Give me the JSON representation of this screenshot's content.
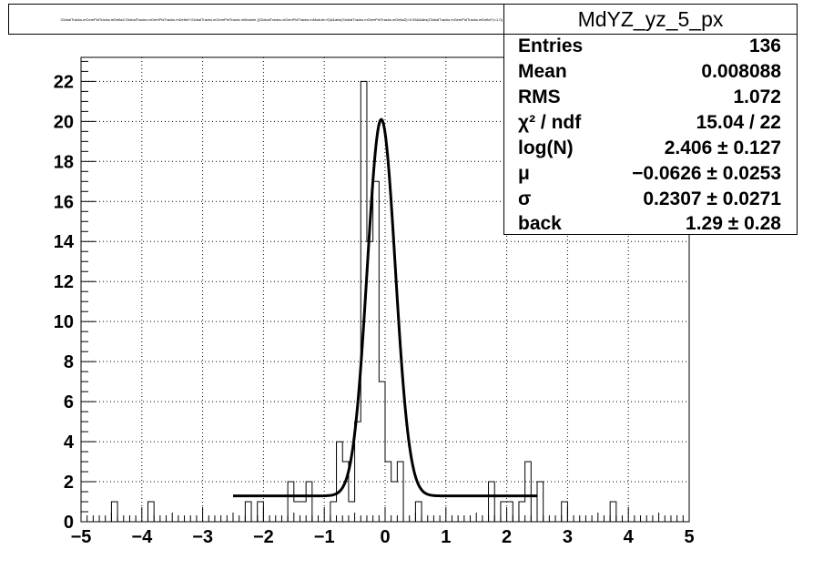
{
  "chart_data": {
    "type": "bar",
    "title": "GlobalTracks.mGemPidTracks.mDeltaZ:GlobalTracks.mGemPidTracks.mDeltaY:GlobalTracks.mGemPidTracks.mModule {(GlobalTracks.mGemPidTracks.mModule>0)&&abs(GlobalTracks.mGemPidTracks.mDeltaZ)<0.05&&abs(GlobalTracks.mGemPidTracks.mDeltaY)<1.0} yz projection",
    "histogram": {
      "bin_edges_start": -5,
      "bin_width": 0.1,
      "counts": [
        0,
        0,
        0,
        0,
        0,
        1,
        0,
        0,
        0,
        0,
        0,
        1,
        0,
        0,
        0,
        0,
        0,
        0,
        0,
        0,
        0,
        0,
        0,
        0,
        0,
        0,
        0,
        1,
        0,
        1,
        0,
        0,
        0,
        0,
        2,
        1,
        1,
        2,
        0,
        0,
        0,
        1,
        4,
        3,
        1,
        5,
        22,
        14,
        17,
        7,
        3,
        2,
        3,
        0,
        0,
        1,
        0,
        0,
        0,
        0,
        0,
        0,
        0,
        0,
        0,
        0,
        0,
        2,
        0,
        1,
        1,
        0,
        1,
        3,
        0,
        2,
        0,
        0,
        0,
        1,
        0,
        0,
        0,
        0,
        0,
        0,
        0,
        1,
        0,
        0,
        0,
        0,
        0,
        0,
        0,
        0,
        0,
        0,
        0,
        0
      ]
    },
    "fit": {
      "function": "gaus + constant",
      "norm": 20.1,
      "mean": -0.0626,
      "sigma": 0.2307,
      "background": 1.29,
      "range": [
        -2.5,
        2.5
      ]
    },
    "x_ticks": [
      "−5",
      "−4",
      "−3",
      "−2",
      "−1",
      "0",
      "1",
      "2",
      "3",
      "4",
      "5"
    ],
    "y_ticks": [
      "0",
      "2",
      "4",
      "6",
      "8",
      "10",
      "12",
      "14",
      "16",
      "18",
      "20",
      "22"
    ],
    "xlim": [
      -5,
      5
    ],
    "ylim": [
      0,
      23.2
    ],
    "grid": true,
    "stats": {
      "name": "MdYZ_yz_5_px",
      "rows": [
        {
          "label": "Entries",
          "value": "136"
        },
        {
          "label": "Mean",
          "value": "0.008088"
        },
        {
          "label": "RMS",
          "value": "1.072"
        },
        {
          "label": "χ² / ndf",
          "value": "15.04 / 22"
        },
        {
          "label": "log(N)",
          "value": "2.406 ± 0.127"
        },
        {
          "label": "μ",
          "value": "−0.0626 ± 0.0253"
        },
        {
          "label": "σ",
          "value": "0.2307 ± 0.0271"
        },
        {
          "label": "back",
          "value": "1.29 ± 0.28"
        }
      ]
    }
  }
}
